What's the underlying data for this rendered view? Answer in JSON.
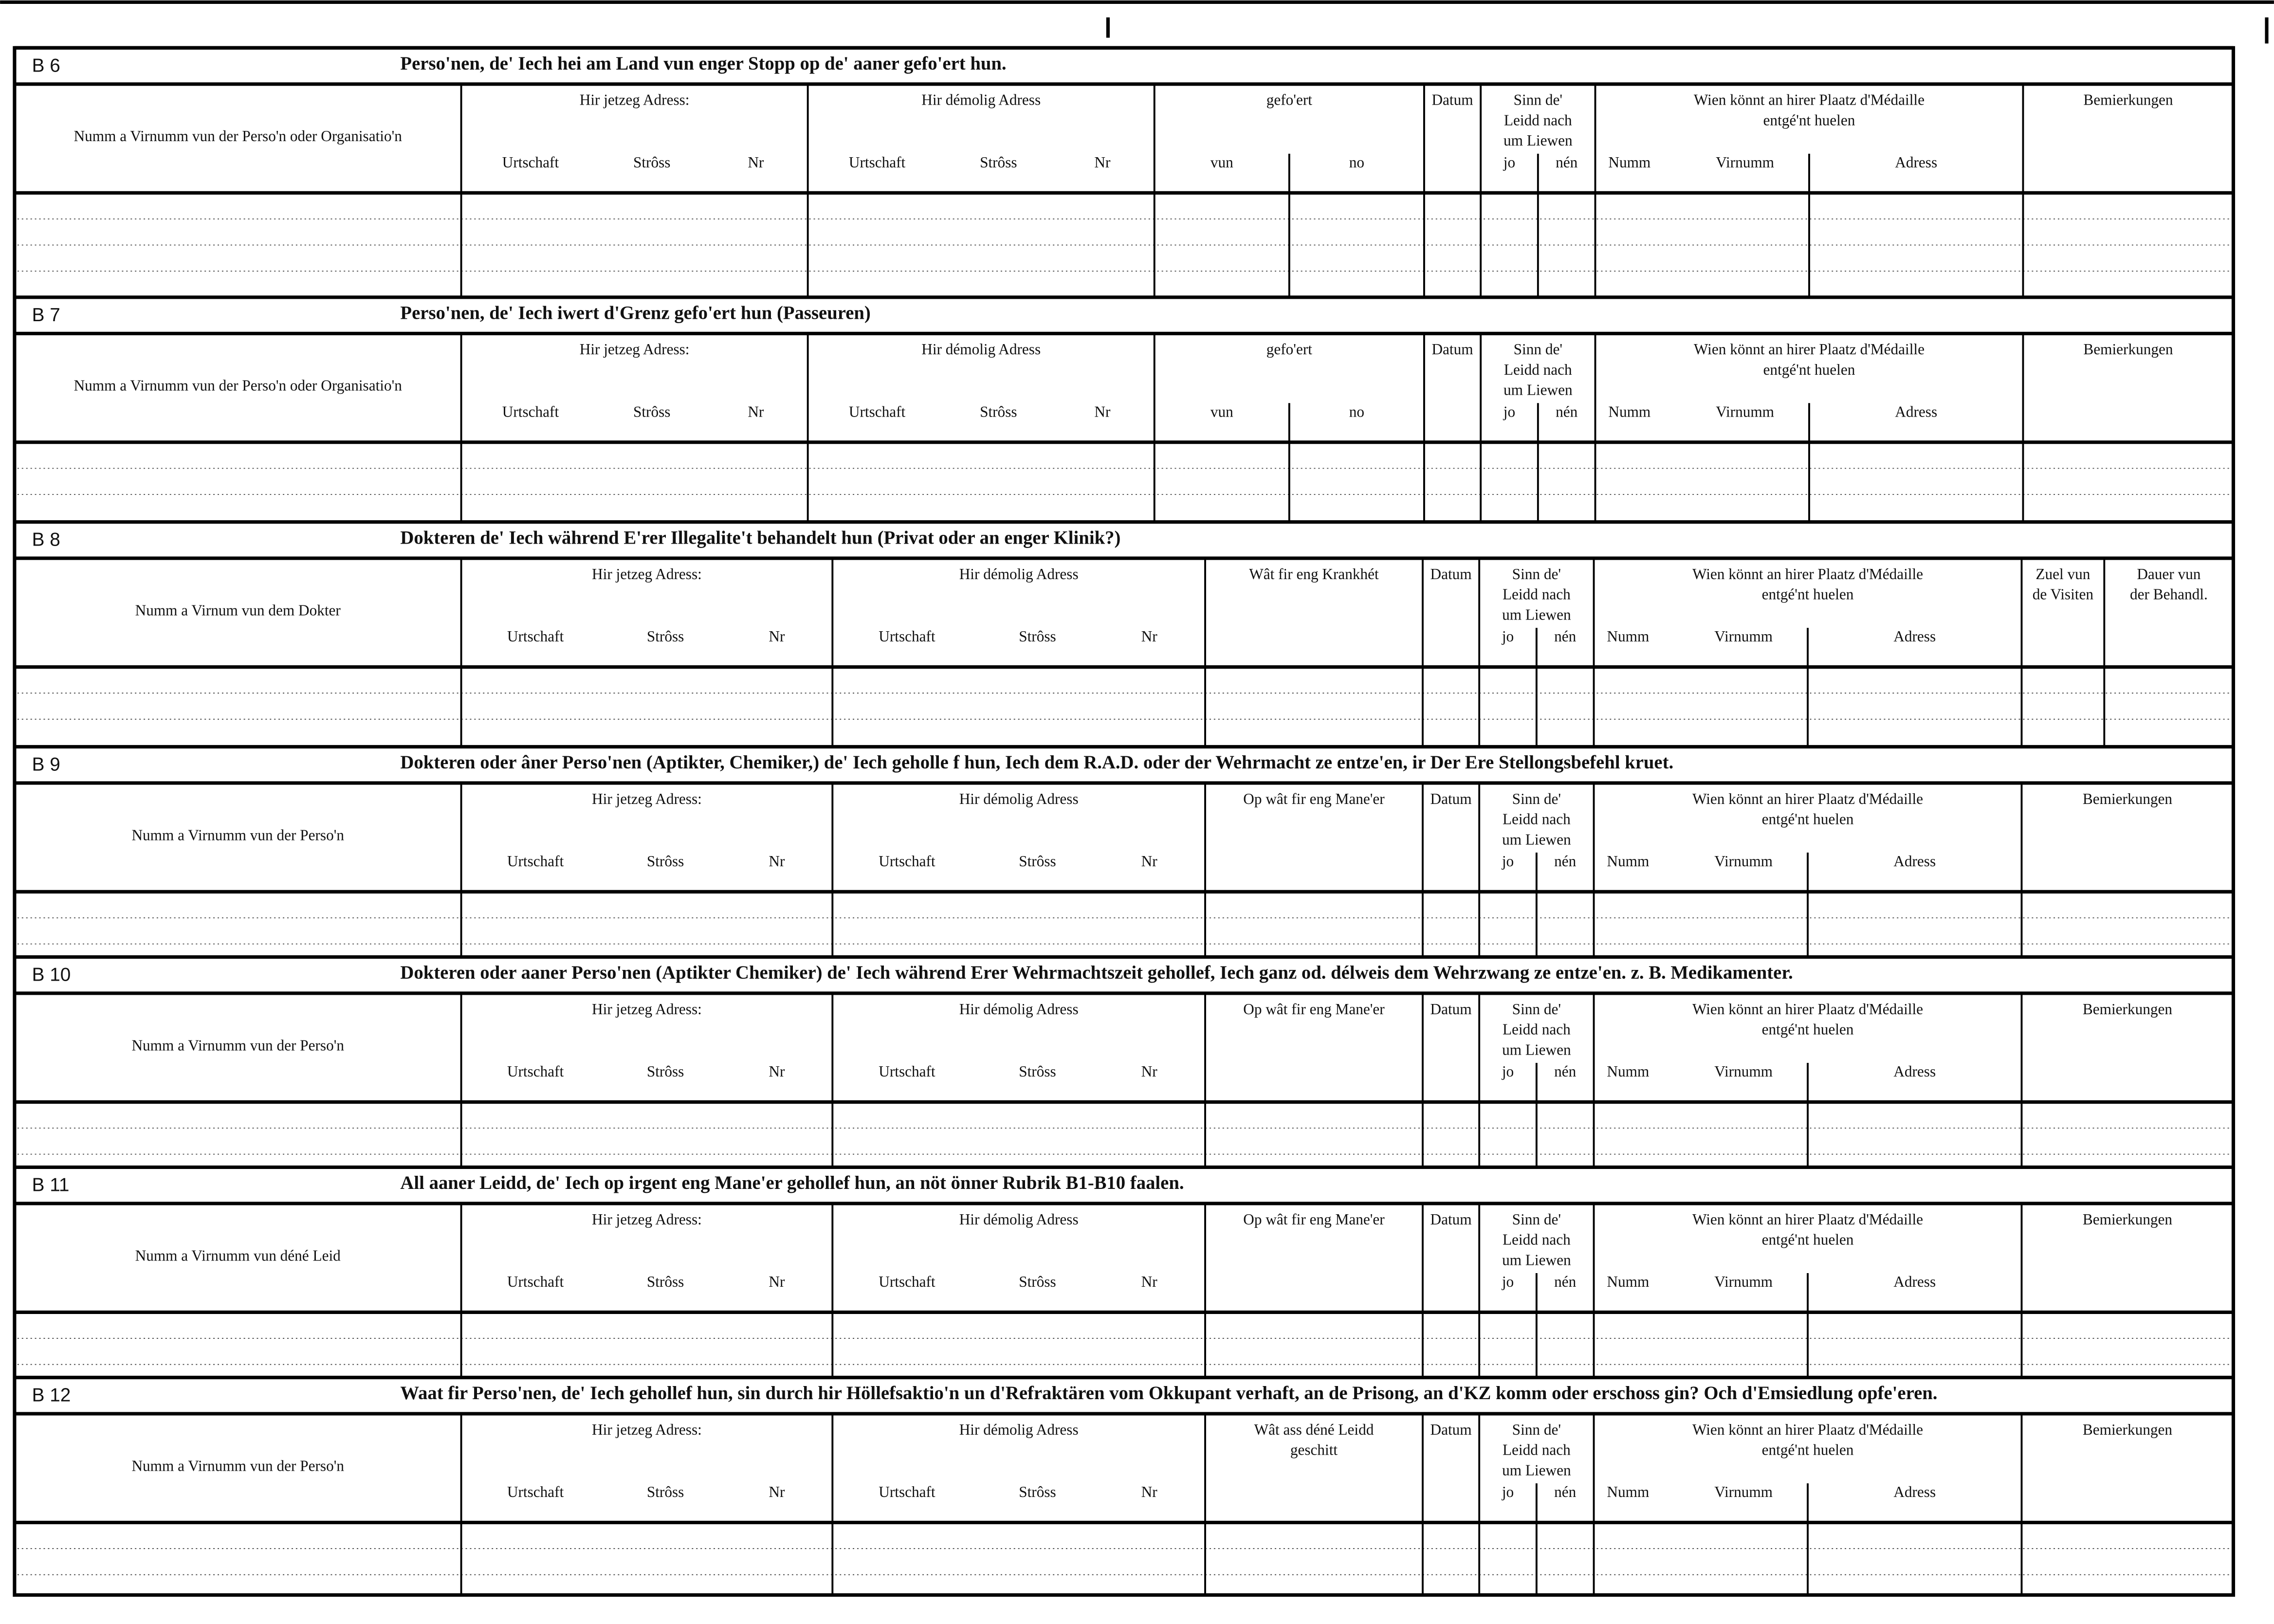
{
  "sections": [
    {
      "code": "B 6",
      "title": "Perso'nen, de' Iech hei am Land vun enger Stopp  op de' aaner gefo'ert hun.",
      "columns": [
        {
          "label": [
            "Numm a Virnumm vun der Perso'n oder Organisatio'n"
          ]
        },
        {
          "label": [
            "Hir jetzeg Adress:"
          ],
          "sub": [
            "Urtschaft",
            "Strôss",
            "Nr"
          ]
        },
        {
          "label": [
            "Hir démolig Adress"
          ],
          "sub": [
            "Urtschaft",
            "Strôss",
            "Nr"
          ]
        },
        {
          "label": [
            "gefo'ert"
          ],
          "sub": [
            "vun",
            "no"
          ]
        },
        {
          "label": [
            "Datum"
          ]
        },
        {
          "label": [
            "Sinn  de'",
            "Leidd  nach",
            "um Liewen"
          ],
          "sub": [
            "jo",
            "nén"
          ]
        },
        {
          "label": [
            "Wien  könnt  an  hirer  Plaatz  d'Médaille",
            "entgé'nt huelen"
          ],
          "sub": [
            "Numm",
            "Virnumm",
            "Adress"
          ]
        },
        {
          "label": [
            "Bemierkungen"
          ]
        }
      ]
    },
    {
      "code": "B 7",
      "title": "Perso'nen, de' Iech iwert d'Grenz gefo'ert hun  (Passeuren)",
      "columns": [
        {
          "label": [
            "Numm a Virnumm vun der Perso'n oder Organisatio'n"
          ]
        },
        {
          "label": [
            "Hir jetzeg Adress:"
          ],
          "sub": [
            "Urtschaft",
            "Strôss",
            "Nr"
          ]
        },
        {
          "label": [
            "Hir démolig Adress"
          ],
          "sub": [
            "Urtschaft",
            "Strôss",
            "Nr"
          ]
        },
        {
          "label": [
            "gefo'ert"
          ],
          "sub": [
            "vun",
            "no"
          ]
        },
        {
          "label": [
            "Datum"
          ]
        },
        {
          "label": [
            "Sinn  de'",
            "Leidd  nach",
            "um Liewen"
          ],
          "sub": [
            "jo",
            "nén"
          ]
        },
        {
          "label": [
            "Wien  könnt  an  hirer  Plaatz  d'Médaille",
            "entgé'nt huelen"
          ],
          "sub": [
            "Numm",
            "Virnumm",
            "Adress"
          ]
        },
        {
          "label": [
            "Bemierkungen"
          ]
        }
      ]
    },
    {
      "code": "B 8",
      "title": "Dokteren de' Iech während E'rer Illegalite't behandelt hun (Privat oder an enger Klinik?)",
      "columns": [
        {
          "label": [
            "Numm a Virnum vun dem Dokter"
          ]
        },
        {
          "label": [
            "Hir jetzeg Adress:"
          ],
          "sub": [
            "Urtschaft",
            "Strôss",
            "Nr"
          ]
        },
        {
          "label": [
            "Hir démolig Adress"
          ],
          "sub": [
            "Urtschaft",
            "Strôss",
            "Nr"
          ]
        },
        {
          "label": [
            "Wât  fir  eng  Krankhét"
          ]
        },
        {
          "label": [
            "Datum"
          ]
        },
        {
          "label": [
            "Sinn  de'",
            "Leidd  nach",
            "um Liewen"
          ],
          "sub": [
            "jo",
            "nén"
          ]
        },
        {
          "label": [
            "Wien  könnt  an  hirer  Plaatz  d'Médaille",
            "entgé'nt huelen"
          ],
          "sub": [
            "Numm",
            "Virnumm",
            "Adress"
          ]
        },
        {
          "label": [
            "Zuel vun",
            "de Visiten"
          ]
        },
        {
          "label": [
            "Dauer vun",
            "der Behandl."
          ]
        }
      ]
    },
    {
      "code": "B 9",
      "title": "Dokteren oder âner Perso'nen (Aptikter, Chemiker,) de' Iech geholle f hun, Iech dem R.A.D. oder der  Wehrmacht  ze  entze'en,  ir Der Ere Stellongsbefehl kruet.",
      "columns": [
        {
          "label": [
            "Numm  a  Virnumm  vun  der  Perso'n"
          ]
        },
        {
          "label": [
            "Hir jetzeg Adress:"
          ],
          "sub": [
            "Urtschaft",
            "Strôss",
            "Nr"
          ]
        },
        {
          "label": [
            "Hir démolig Adress"
          ],
          "sub": [
            "Urtschaft",
            "Strôss",
            "Nr"
          ]
        },
        {
          "label": [
            "Op  wât  fir  eng  Mane'er"
          ]
        },
        {
          "label": [
            "Datum"
          ]
        },
        {
          "label": [
            "Sinn  de'",
            "Leidd  nach",
            "um Liewen"
          ],
          "sub": [
            "jo",
            "nén"
          ]
        },
        {
          "label": [
            "Wien  könnt  an  hirer  Plaatz  d'Médaille",
            "entgé'nt huelen"
          ],
          "sub": [
            "Numm",
            "Virnumm",
            "Adress"
          ]
        },
        {
          "label": [
            "Bemierkungen"
          ]
        }
      ]
    },
    {
      "code": "B 10",
      "title": "Dokteren oder aaner Perso'nen (Aptikter Chemiker)  de' Iech während Erer Wehrmachtszeit gehollef,  Iech ganz od.  délweis dem Wehrzwang ze entze'en.  z. B. Medikamenter.",
      "columns": [
        {
          "label": [
            "Numm  a  Virnumm  vun  der  Perso'n"
          ]
        },
        {
          "label": [
            "Hir jetzeg Adress:"
          ],
          "sub": [
            "Urtschaft",
            "Strôss",
            "Nr"
          ]
        },
        {
          "label": [
            "Hir démolig Adress"
          ],
          "sub": [
            "Urtschaft",
            "Strôss",
            "Nr"
          ]
        },
        {
          "label": [
            "Op  wât  fir  eng  Mane'er"
          ]
        },
        {
          "label": [
            "Datum"
          ]
        },
        {
          "label": [
            "Sinn  de'",
            "Leidd  nach",
            "um Liewen"
          ],
          "sub": [
            "jo",
            "nén"
          ]
        },
        {
          "label": [
            "Wien  könnt  an  hirer  Plaatz  d'Médaille",
            "entgé'nt huelen"
          ],
          "sub": [
            "Numm",
            "Virnumm",
            "Adress"
          ]
        },
        {
          "label": [
            "Bemierkungen"
          ]
        }
      ]
    },
    {
      "code": "B 11",
      "title": "All aaner Leidd, de' Iech op irgent eng Mane'er  gehollef hun,  an nöt önner Rubrik B1-B10  faalen.",
      "columns": [
        {
          "label": [
            "Numm  a  Virnumm  vun  déné  Leid"
          ]
        },
        {
          "label": [
            "Hir jetzeg Adress:"
          ],
          "sub": [
            "Urtschaft",
            "Strôss",
            "Nr"
          ]
        },
        {
          "label": [
            "Hir démolig Adress"
          ],
          "sub": [
            "Urtschaft",
            "Strôss",
            "Nr"
          ]
        },
        {
          "label": [
            "Op  wât  fir  eng  Mane'er"
          ]
        },
        {
          "label": [
            "Datum"
          ]
        },
        {
          "label": [
            "Sinn  de'",
            "Leidd  nach",
            "um Liewen"
          ],
          "sub": [
            "jo",
            "nén"
          ]
        },
        {
          "label": [
            "Wien  könnt  an  hirer  Plaatz  d'Médaille",
            "entgé'nt huelen"
          ],
          "sub": [
            "Numm",
            "Virnumm",
            "Adress"
          ]
        },
        {
          "label": [
            "Bemierkungen"
          ]
        }
      ]
    },
    {
      "code": "B 12",
      "title": "Waat fir Perso'nen, de' Iech gehollef hun, sin durch hir Höllefsaktio'n un d'Refraktären vom Okkupant verhaft, an de Prisong, an d'KZ komm oder  erschoss gin? Och d'Emsiedlung opfe'eren.",
      "columns": [
        {
          "label": [
            "Numm  a  Virnumm  vun  der  Perso'n"
          ]
        },
        {
          "label": [
            "Hir jetzeg Adress:"
          ],
          "sub": [
            "Urtschaft",
            "Strôss",
            "Nr"
          ]
        },
        {
          "label": [
            "Hir démolig Adress"
          ],
          "sub": [
            "Urtschaft",
            "Strôss",
            "Nr"
          ]
        },
        {
          "label": [
            "Wât  ass  déné  Leidd",
            "geschitt"
          ]
        },
        {
          "label": [
            "Datum"
          ]
        },
        {
          "label": [
            "Sinn  de'",
            "Leidd  nach",
            "um Liewen"
          ],
          "sub": [
            "jo",
            "nén"
          ]
        },
        {
          "label": [
            "Wien  könnt  an  hirer  Plaatz  d'Médaille",
            "entgé'nt huelen"
          ],
          "sub": [
            "Numm",
            "Virnumm",
            "Adress"
          ]
        },
        {
          "label": [
            "Bemierkungen"
          ]
        }
      ]
    }
  ]
}
